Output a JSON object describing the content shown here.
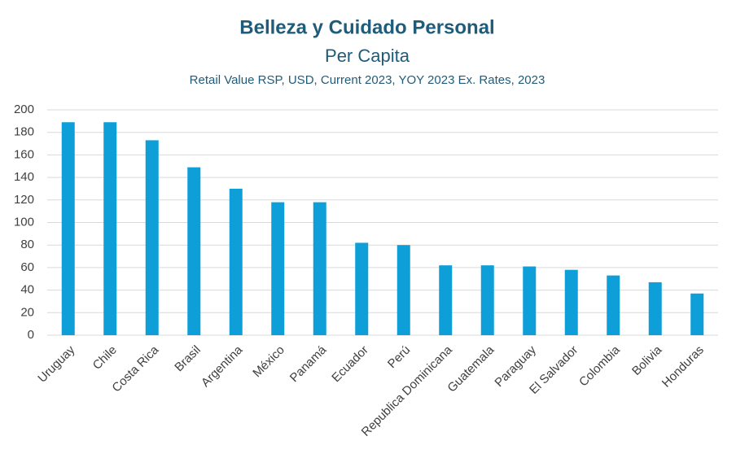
{
  "chart_data": {
    "type": "bar",
    "title": "Belleza y Cuidado Personal",
    "subtitle": "Per Capita",
    "description": "Retail  Value RSP, USD, Current 2023, YOY 2023 Ex. Rates, 2023",
    "categories": [
      "Uruguay",
      "Chile",
      "Costa Rica",
      "Brasil",
      "Argentina",
      "México",
      "Panamá",
      "Ecuador",
      "Perú",
      "Republica Dominicana",
      "Guatemala",
      "Paraguay",
      "El Salvador",
      "Colombia",
      "Bolivia",
      "Honduras"
    ],
    "values": [
      189,
      189,
      173,
      149,
      130,
      118,
      118,
      82,
      80,
      62,
      62,
      61,
      58,
      53,
      47,
      37
    ],
    "color": "#0e9fd8",
    "ylim": [
      0,
      200
    ],
    "yticks": [
      0,
      20,
      40,
      60,
      80,
      100,
      120,
      140,
      160,
      180,
      200
    ],
    "grid": true
  }
}
